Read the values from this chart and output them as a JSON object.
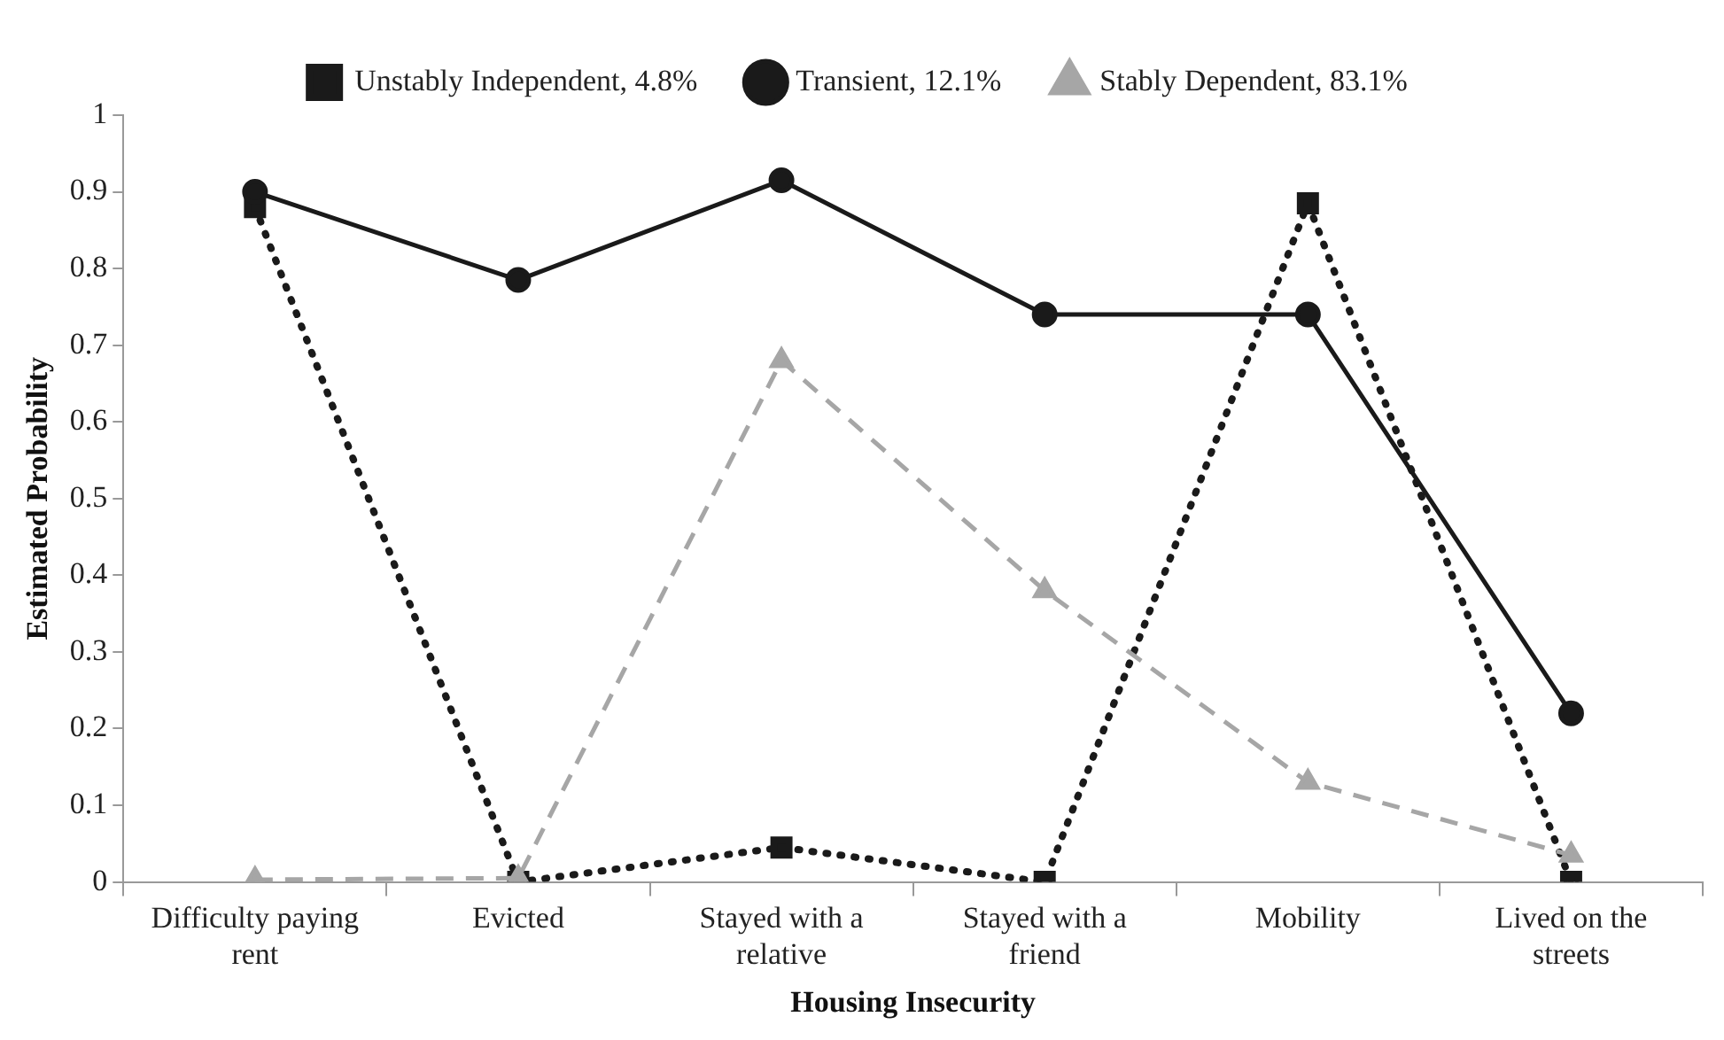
{
  "chart_data": {
    "type": "line",
    "xlabel": "Housing Insecurity",
    "ylabel": "Estimated Probability",
    "categories": [
      "Difficulty paying rent",
      "Evicted",
      "Stayed with a relative",
      "Stayed with a friend",
      "Mobility",
      "Lived on the streets"
    ],
    "series": [
      {
        "name": "Unstably Independent, 4.8%",
        "color": "#1a1a1a",
        "marker": "square",
        "line_style": "dotted",
        "values": [
          0.88,
          0,
          0.045,
          0,
          0.885,
          0
        ]
      },
      {
        "name": "Transient, 12.1%",
        "color": "#1a1a1a",
        "marker": "circle",
        "line_style": "solid",
        "values": [
          0.9,
          0.785,
          0.915,
          0.74,
          0.74,
          0.22
        ]
      },
      {
        "name": "Stably Dependent, 83.1%",
        "color": "#a6a6a6",
        "marker": "triangle",
        "line_style": "dashed",
        "values": [
          0.003,
          0.005,
          0.68,
          0.38,
          0.13,
          0.035
        ]
      }
    ],
    "ylim": [
      0,
      1
    ],
    "yticks": [
      0,
      0.1,
      0.2,
      0.3,
      0.4,
      0.5,
      0.6,
      0.7,
      0.8,
      0.9,
      1
    ],
    "grid": false,
    "legend": "top"
  }
}
